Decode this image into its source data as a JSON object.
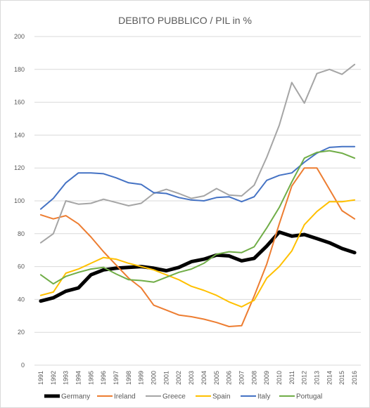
{
  "chart_data": {
    "type": "line",
    "title": "DEBITO PUBBLICO / PIL in %",
    "xlabel": "",
    "ylabel": "",
    "ylim": [
      0,
      200
    ],
    "yticks": [
      0,
      20,
      40,
      60,
      80,
      100,
      120,
      140,
      160,
      180,
      200
    ],
    "grid": true,
    "legend_position": "bottom",
    "categories": [
      "1991",
      "1992",
      "1993",
      "1994",
      "1995",
      "1996",
      "1997",
      "1998",
      "1999",
      "2000",
      "2001",
      "2002",
      "2003",
      "2004",
      "2005",
      "2006",
      "2007",
      "2008",
      "2009",
      "2010",
      "2011",
      "2012",
      "2013",
      "2014",
      "2015",
      "2016"
    ],
    "series": [
      {
        "name": "Germany",
        "color": "#000000",
        "values": [
          39,
          41,
          45,
          47,
          55,
          58,
          59,
          59.5,
          60,
          59,
          57.5,
          59.5,
          63,
          64.5,
          67,
          66.5,
          63.5,
          65,
          72.5,
          81,
          78.5,
          79.5,
          77,
          74.5,
          71,
          68.5
        ]
      },
      {
        "name": "Ireland",
        "color": "#ed7d31",
        "values": [
          91.5,
          89,
          91,
          86,
          78,
          69,
          61,
          53,
          47,
          36.5,
          33.5,
          30.5,
          29.5,
          28,
          26,
          23.5,
          24,
          42,
          61.5,
          86,
          109,
          120,
          120,
          107,
          94,
          89
        ]
      },
      {
        "name": "Greece",
        "color": "#a5a5a5",
        "values": [
          74.5,
          80,
          100,
          98,
          98.5,
          101,
          99,
          97,
          98.5,
          104.5,
          107,
          104.5,
          101.5,
          103,
          107.5,
          103.5,
          103,
          109.5,
          126.5,
          146,
          172,
          159.5,
          177.5,
          180,
          177,
          183
        ]
      },
      {
        "name": "Spain",
        "color": "#ffc000",
        "values": [
          42.5,
          44.5,
          56,
          58.5,
          62,
          65.5,
          64.5,
          62,
          60,
          58,
          55,
          52,
          48,
          45.5,
          42.5,
          38.5,
          35.5,
          39.5,
          53,
          60,
          69.5,
          85.5,
          93.5,
          99.5,
          99.5,
          100.5
        ]
      },
      {
        "name": "Italy",
        "color": "#4472c4",
        "values": [
          95,
          101.5,
          111,
          117,
          117,
          116.5,
          114,
          111,
          110,
          105,
          104.5,
          102,
          100.5,
          100,
          102,
          102.5,
          99.5,
          102.5,
          112.5,
          115.5,
          117,
          123.5,
          129,
          132.5,
          133,
          133
        ]
      },
      {
        "name": "Portugal",
        "color": "#70ad47",
        "values": [
          55,
          49.5,
          54,
          56.5,
          58.5,
          59.5,
          55.5,
          52,
          51.5,
          50.5,
          53.5,
          56.5,
          58.5,
          62,
          67.5,
          69,
          68.5,
          72,
          83.5,
          96,
          111.5,
          126,
          129.5,
          130.5,
          129,
          126
        ]
      }
    ]
  }
}
